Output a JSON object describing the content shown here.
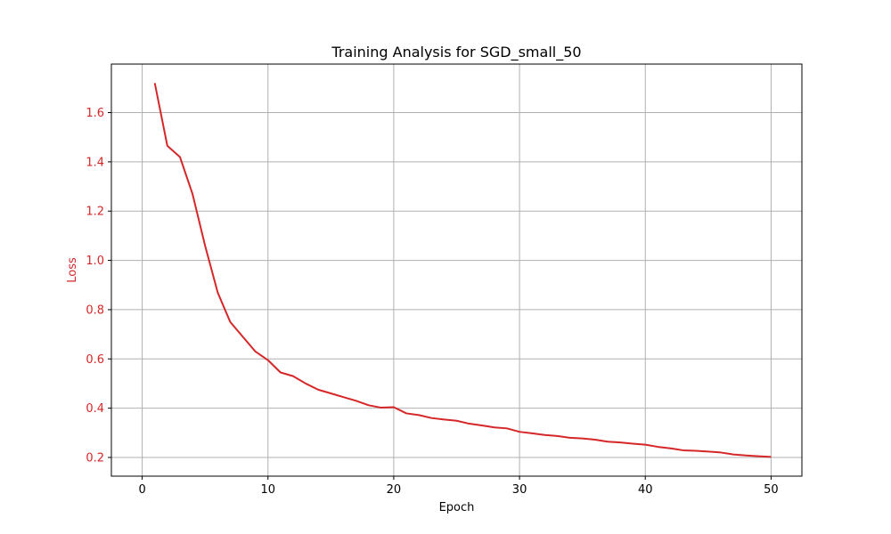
{
  "chart_data": {
    "type": "line",
    "title": "Training Analysis for SGD_small_50",
    "xlabel": "Epoch",
    "ylabel": "Loss",
    "xlim": [
      -2.45,
      52.45
    ],
    "ylim": [
      0.124,
      1.797
    ],
    "xticks": [
      0,
      10,
      20,
      30,
      40,
      50
    ],
    "yticks": [
      0.2,
      0.4,
      0.6,
      0.8,
      1.0,
      1.2,
      1.4,
      1.6
    ],
    "ytick_labels": [
      "0.2",
      "0.4",
      "0.6",
      "0.8",
      "1.0",
      "1.2",
      "1.4",
      "1.6"
    ],
    "grid": true,
    "colors": {
      "series": "#d62728",
      "ylabel": "#d62728",
      "grid": "#b0b0b0",
      "axes": "#000000"
    },
    "series": [
      {
        "x": [
          1,
          2,
          3,
          4,
          5,
          6,
          7,
          8,
          9,
          10,
          11,
          12,
          13,
          14,
          15,
          16,
          17,
          18,
          19,
          20,
          21,
          22,
          23,
          24,
          25,
          26,
          27,
          28,
          29,
          30,
          31,
          32,
          33,
          34,
          35,
          36,
          37,
          38,
          39,
          40,
          41,
          42,
          43,
          44,
          45,
          46,
          47,
          48,
          49,
          50
        ],
        "values": [
          1.72,
          1.465,
          1.42,
          1.27,
          1.06,
          0.87,
          0.75,
          0.69,
          0.63,
          0.595,
          0.545,
          0.53,
          0.5,
          0.475,
          0.46,
          0.445,
          0.43,
          0.412,
          0.402,
          0.404,
          0.379,
          0.372,
          0.36,
          0.354,
          0.349,
          0.337,
          0.33,
          0.322,
          0.318,
          0.304,
          0.298,
          0.291,
          0.287,
          0.28,
          0.277,
          0.272,
          0.264,
          0.261,
          0.256,
          0.252,
          0.243,
          0.237,
          0.229,
          0.227,
          0.224,
          0.22,
          0.212,
          0.208,
          0.205,
          0.202
        ]
      }
    ]
  }
}
